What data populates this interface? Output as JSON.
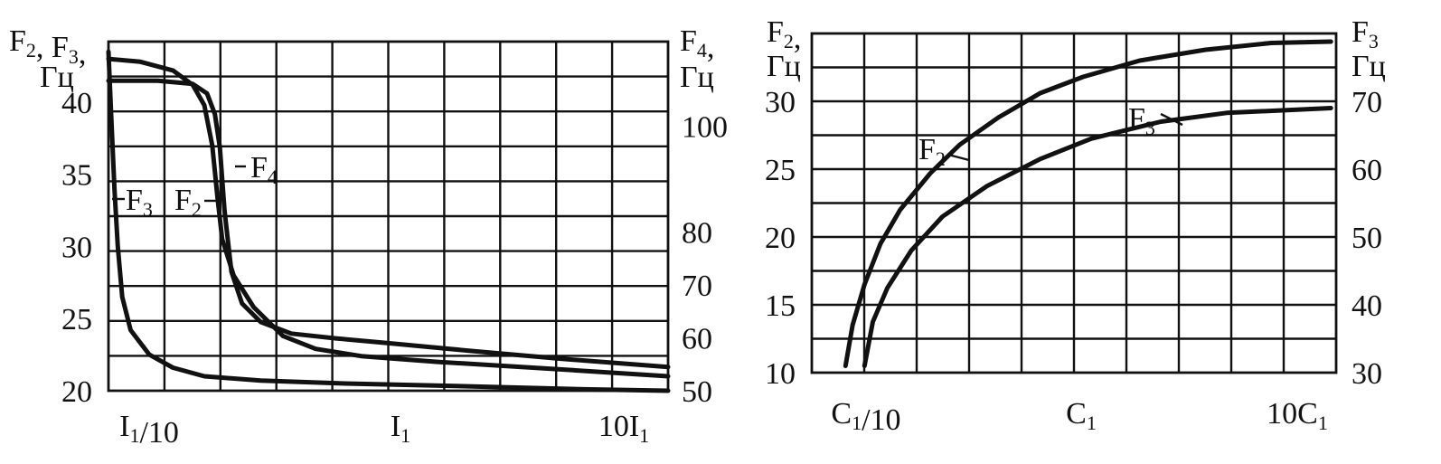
{
  "chart_data": [
    {
      "type": "line",
      "xscale": "log",
      "x_tick_labels": [
        {
          "base": "I",
          "sub": "1",
          "suffix": "/10",
          "value": 0.1
        },
        {
          "base": "I",
          "sub": "1",
          "suffix": "",
          "value": 1
        },
        {
          "prefix": "10",
          "base": "I",
          "sub": "1",
          "value": 10
        }
      ],
      "xlim": [
        0.1,
        10
      ],
      "left_axis": {
        "label_lines": [
          [
            {
              "t": "F"
            },
            {
              "s": "2"
            },
            {
              "t": ", F"
            },
            {
              "s": "3"
            },
            {
              "t": ","
            }
          ],
          [
            {
              "t": "Гц"
            }
          ]
        ],
        "ylim": [
          20,
          44.2
        ],
        "ticks": [
          "20",
          "25",
          "30",
          "35",
          "40"
        ]
      },
      "right_axis": {
        "label_lines": [
          [
            {
              "t": "F"
            },
            {
              "s": "4"
            },
            {
              "t": ","
            }
          ],
          [
            {
              "t": "Гц"
            }
          ]
        ],
        "ylim": [
          50,
          116
        ],
        "ticks": [
          "50",
          "60",
          "70",
          "80",
          "100"
        ]
      },
      "grid": true,
      "series": [
        {
          "name": "F3",
          "label": {
            "t": "F",
            "s": "3"
          },
          "axis": "left",
          "points": [
            [
              0.1,
              43.5
            ],
            [
              0.102,
              39.5
            ],
            [
              0.105,
              34
            ],
            [
              0.108,
              30
            ],
            [
              0.112,
              26.5
            ],
            [
              0.12,
              24.2
            ],
            [
              0.14,
              22.5
            ],
            [
              0.17,
              21.6
            ],
            [
              0.22,
              21.0
            ],
            [
              0.35,
              20.7
            ],
            [
              0.7,
              20.5
            ],
            [
              2,
              20.3
            ],
            [
              5,
              20.1
            ],
            [
              10,
              20.0
            ]
          ]
        },
        {
          "name": "F2",
          "label": {
            "t": "F",
            "s": "2"
          },
          "axis": "left",
          "points": [
            [
              0.1,
              43.0
            ],
            [
              0.13,
              42.8
            ],
            [
              0.17,
              42.2
            ],
            [
              0.2,
              41.2
            ],
            [
              0.22,
              39.8
            ],
            [
              0.235,
              37.0
            ],
            [
              0.245,
              33.5
            ],
            [
              0.255,
              30.5
            ],
            [
              0.28,
              28.0
            ],
            [
              0.33,
              25.8
            ],
            [
              0.42,
              23.8
            ],
            [
              0.55,
              22.9
            ],
            [
              0.8,
              22.4
            ],
            [
              1.5,
              22.0
            ],
            [
              4,
              21.5
            ],
            [
              10,
              21.0
            ]
          ]
        },
        {
          "name": "F4",
          "label": {
            "t": "F",
            "s": "4"
          },
          "axis": "right",
          "points": [
            [
              0.1,
              108.6
            ],
            [
              0.15,
              108.6
            ],
            [
              0.2,
              108.0
            ],
            [
              0.225,
              106.2
            ],
            [
              0.24,
              102.3
            ],
            [
              0.25,
              96
            ],
            [
              0.26,
              84
            ],
            [
              0.275,
              72.5
            ],
            [
              0.3,
              66.5
            ],
            [
              0.35,
              63
            ],
            [
              0.45,
              60.8
            ],
            [
              0.65,
              59.9
            ],
            [
              1,
              59.0
            ],
            [
              2,
              57.5
            ],
            [
              4,
              56.1
            ],
            [
              10,
              54.5
            ]
          ]
        }
      ]
    },
    {
      "type": "line",
      "xscale": "log",
      "x_tick_labels": [
        {
          "base": "C",
          "sub": "1",
          "suffix": "/10",
          "value": 0.1
        },
        {
          "base": "C",
          "sub": "1",
          "suffix": "",
          "value": 1
        },
        {
          "prefix": "10",
          "base": "C",
          "sub": "1",
          "value": 10
        }
      ],
      "xlim": [
        0.0631,
        15.85
      ],
      "left_axis": {
        "label_lines": [
          [
            {
              "t": "F"
            },
            {
              "s": "2"
            },
            {
              "t": ","
            }
          ],
          [
            {
              "t": "Гц"
            }
          ]
        ],
        "ylim": [
          10,
          35
        ],
        "ticks": [
          "10",
          "15",
          "20",
          "25",
          "30"
        ]
      },
      "right_axis": {
        "label_lines": [
          [
            {
              "t": "F"
            },
            {
              "s": "3"
            }
          ],
          [
            {
              "t": "Гц"
            }
          ]
        ],
        "ylim": [
          30,
          80
        ],
        "ticks": [
          "30",
          "40",
          "50",
          "60",
          "70"
        ]
      },
      "grid": true,
      "series": [
        {
          "name": "F2",
          "label": {
            "t": "F",
            "s": "2"
          },
          "axis": "left",
          "points": [
            [
              0.09,
              10.5
            ],
            [
              0.097,
              13.5
            ],
            [
              0.11,
              16.5
            ],
            [
              0.13,
              19.5
            ],
            [
              0.16,
              22.0
            ],
            [
              0.22,
              24.7
            ],
            [
              0.3,
              26.8
            ],
            [
              0.45,
              28.8
            ],
            [
              0.7,
              30.6
            ],
            [
              1.1,
              31.8
            ],
            [
              2,
              33.0
            ],
            [
              4,
              33.8
            ],
            [
              8,
              34.3
            ],
            [
              15,
              34.4
            ]
          ]
        },
        {
          "name": "F3",
          "label": {
            "t": "F",
            "s": "3"
          },
          "axis": "right",
          "points": [
            [
              0.11,
              31
            ],
            [
              0.12,
              37.5
            ],
            [
              0.14,
              42.5
            ],
            [
              0.18,
              48
            ],
            [
              0.25,
              53
            ],
            [
              0.4,
              57.5
            ],
            [
              0.7,
              61.5
            ],
            [
              1.2,
              64.5
            ],
            [
              2.5,
              67
            ],
            [
              5,
              68.3
            ],
            [
              15,
              69
            ]
          ]
        }
      ]
    }
  ]
}
